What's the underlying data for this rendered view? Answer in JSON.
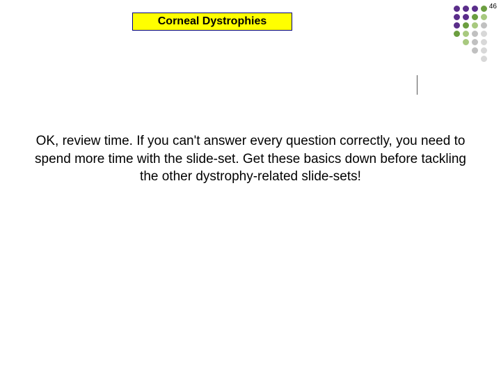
{
  "page_number": "46",
  "title": "Corneal Dystrophies",
  "title_box": {
    "background_color": "#ffff00",
    "border_color": "#000080"
  },
  "body": "OK, review time. If you can't answer every question correctly, you need to spend more time with the slide-set. Get these basics down before tackling the other dystrophy-related slide-sets!",
  "dot_grid": {
    "rows": [
      [
        "#5a2d8a",
        "#5a2d8a",
        "#5a2d8a",
        "#6b9e3f"
      ],
      [
        "#5a2d8a",
        "#5a2d8a",
        "#6b9e3f",
        "#a8c97f"
      ],
      [
        "#5a2d8a",
        "#6b9e3f",
        "#a8c97f",
        "#c0c0c0"
      ],
      [
        "#6b9e3f",
        "#a8c97f",
        "#c0c0c0",
        "#d8d8d8"
      ],
      [
        "#a8c97f",
        "#c0c0c0",
        "#d8d8d8"
      ],
      [
        "#c0c0c0",
        "#d8d8d8"
      ],
      [
        "#d8d8d8"
      ]
    ]
  },
  "background_color": "#ffffff"
}
